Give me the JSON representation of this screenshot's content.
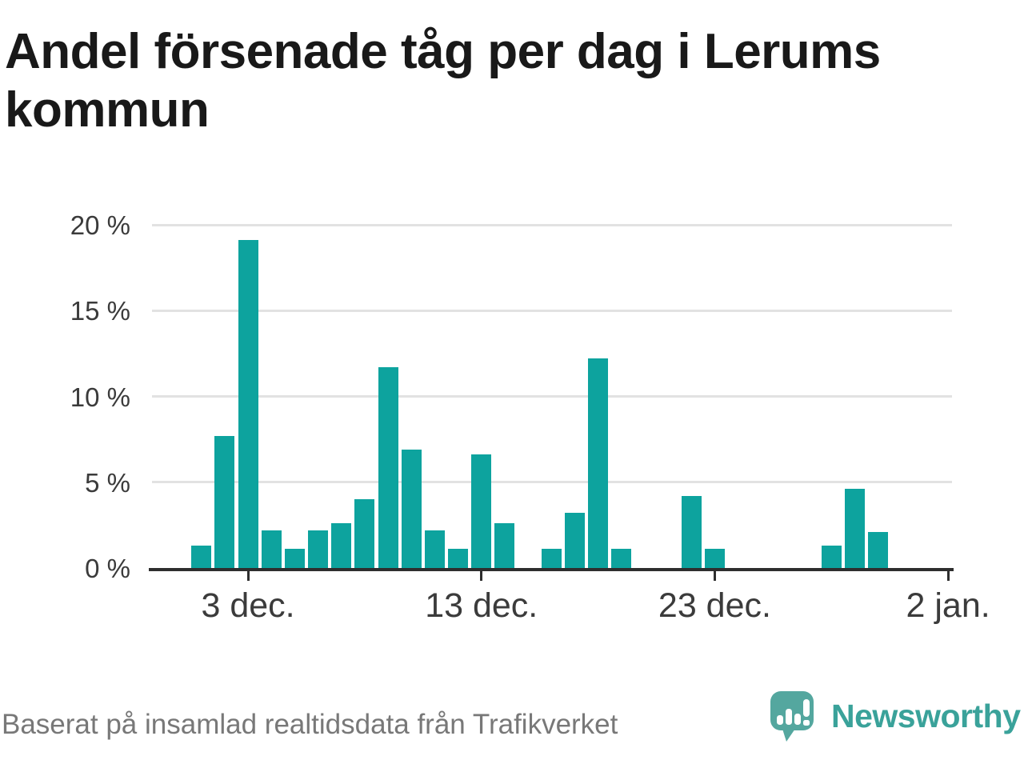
{
  "title": {
    "line1": "Andel försenade tåg per dag i Lerums",
    "line2": "kommun"
  },
  "source_note": "Baserat på insamlad realtidsdata från Trafikverket",
  "logo": {
    "text": "Newsworthy"
  },
  "colors": {
    "bar": "#0da39e",
    "logo_mark": "#54a79f",
    "logo_text": "#3aa29a",
    "axis": "#2e2e2e",
    "grid": "#e2e2e2",
    "tick_label": "#3b3b3b",
    "footer_text": "#787878",
    "title_text": "#191919"
  },
  "chart_data": {
    "type": "bar",
    "title": "Andel försenade tåg per dag i Lerums kommun",
    "xlabel": "",
    "ylabel": "",
    "unit": "%",
    "ylim": [
      0,
      20
    ],
    "grid": true,
    "legend": false,
    "categories": [
      "1 dec.",
      "2 dec.",
      "3 dec.",
      "4 dec.",
      "5 dec.",
      "6 dec.",
      "7 dec.",
      "8 dec.",
      "9 dec.",
      "10 dec.",
      "11 dec.",
      "12 dec.",
      "13 dec.",
      "14 dec.",
      "15 dec.",
      "16 dec.",
      "17 dec.",
      "18 dec.",
      "19 dec.",
      "20 dec.",
      "21 dec.",
      "22 dec.",
      "23 dec.",
      "24 dec.",
      "25 dec.",
      "26 dec.",
      "27 dec.",
      "28 dec.",
      "29 dec.",
      "30 dec.",
      "31 dec.",
      "1 jan.",
      "2 jan."
    ],
    "values": [
      1.3,
      7.7,
      19.1,
      2.2,
      1.1,
      2.2,
      2.6,
      4.0,
      11.7,
      6.9,
      2.2,
      1.1,
      6.6,
      2.6,
      0,
      1.1,
      3.2,
      12.2,
      1.1,
      0,
      0,
      4.2,
      1.1,
      0,
      0,
      0,
      0,
      1.3,
      4.6,
      2.1,
      0,
      0,
      0
    ],
    "yticks": [
      {
        "value": 0,
        "label": "0 %"
      },
      {
        "value": 5,
        "label": "5 %"
      },
      {
        "value": 10,
        "label": "10 %"
      },
      {
        "value": 15,
        "label": "15 %"
      },
      {
        "value": 20,
        "label": "20 %"
      }
    ],
    "xticks": [
      {
        "index": 2,
        "label": "3 dec."
      },
      {
        "index": 12,
        "label": "13 dec."
      },
      {
        "index": 22,
        "label": "23 dec."
      },
      {
        "index": 32,
        "label": "2 jan."
      }
    ]
  }
}
